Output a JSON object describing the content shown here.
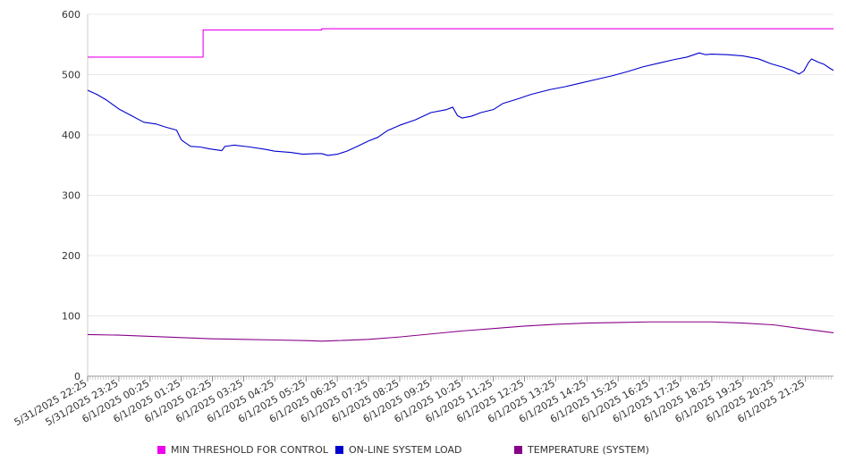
{
  "chart_data": {
    "type": "line",
    "y_ticks": [
      0,
      100,
      200,
      300,
      400,
      500,
      600
    ],
    "ylim": [
      0,
      600
    ],
    "x_tick_labels": [
      "5/31/2025 22:25",
      "5/31/2025 23:25",
      "6/1/2025 00:25",
      "6/1/2025 01:25",
      "6/1/2025 02:25",
      "6/1/2025 03:25",
      "6/1/2025 04:25",
      "6/1/2025 05:25",
      "6/1/2025 06:25",
      "6/1/2025 07:25",
      "6/1/2025 08:25",
      "6/1/2025 09:25",
      "6/1/2025 10:25",
      "6/1/2025 11:25",
      "6/1/2025 12:25",
      "6/1/2025 13:25",
      "6/1/2025 14:25",
      "6/1/2025 15:25",
      "6/1/2025 16:25",
      "6/1/2025 17:25",
      "6/1/2025 18:25",
      "6/1/2025 19:25",
      "6/1/2025 20:25",
      "6/1/2025 21:25"
    ],
    "x_hours": [
      0,
      1,
      2,
      3,
      4,
      5,
      6,
      7,
      8,
      9,
      10,
      11,
      12,
      13,
      14,
      15,
      16,
      17,
      18,
      19,
      20,
      21,
      22,
      23
    ],
    "xlim_hours": [
      0,
      23.9
    ],
    "grid": true,
    "legend_placement": "bottom",
    "series": [
      {
        "name": "MIN THRESHOLD FOR CONTROL",
        "color": "#ee00ee",
        "step": true,
        "points": [
          [
            0,
            529
          ],
          [
            3.7,
            529
          ],
          [
            3.7,
            574
          ],
          [
            7.5,
            574
          ],
          [
            7.5,
            576
          ],
          [
            23.9,
            576
          ]
        ]
      },
      {
        "name": "ON-LINE SYSTEM LOAD",
        "color": "#0000cc",
        "points": [
          [
            0,
            474
          ],
          [
            0.3,
            467
          ],
          [
            0.6,
            458
          ],
          [
            1.0,
            443
          ],
          [
            1.4,
            432
          ],
          [
            1.8,
            421
          ],
          [
            2.2,
            418
          ],
          [
            2.5,
            413
          ],
          [
            2.85,
            408
          ],
          [
            3.0,
            392
          ],
          [
            3.1,
            388
          ],
          [
            3.3,
            381
          ],
          [
            3.6,
            380
          ],
          [
            3.9,
            377
          ],
          [
            4.3,
            374
          ],
          [
            4.4,
            381
          ],
          [
            4.7,
            383
          ],
          [
            5.2,
            380
          ],
          [
            5.7,
            376
          ],
          [
            6.0,
            373
          ],
          [
            6.5,
            371
          ],
          [
            6.9,
            368
          ],
          [
            7.3,
            369
          ],
          [
            7.5,
            369
          ],
          [
            7.7,
            366
          ],
          [
            8.0,
            368
          ],
          [
            8.3,
            373
          ],
          [
            8.6,
            380
          ],
          [
            9.0,
            390
          ],
          [
            9.3,
            396
          ],
          [
            9.6,
            407
          ],
          [
            10.0,
            416
          ],
          [
            10.5,
            425
          ],
          [
            11.0,
            437
          ],
          [
            11.5,
            442
          ],
          [
            11.7,
            446
          ],
          [
            11.85,
            432
          ],
          [
            12.0,
            428
          ],
          [
            12.3,
            431
          ],
          [
            12.6,
            437
          ],
          [
            13.0,
            442
          ],
          [
            13.3,
            452
          ],
          [
            13.8,
            460
          ],
          [
            14.2,
            467
          ],
          [
            14.8,
            475
          ],
          [
            15.3,
            480
          ],
          [
            15.8,
            486
          ],
          [
            16.3,
            492
          ],
          [
            16.8,
            498
          ],
          [
            17.3,
            505
          ],
          [
            17.8,
            513
          ],
          [
            18.3,
            519
          ],
          [
            18.8,
            525
          ],
          [
            19.2,
            529
          ],
          [
            19.6,
            536
          ],
          [
            19.8,
            533
          ],
          [
            20.0,
            534
          ],
          [
            20.5,
            533
          ],
          [
            21.0,
            531
          ],
          [
            21.5,
            526
          ],
          [
            21.9,
            518
          ],
          [
            22.3,
            512
          ],
          [
            22.6,
            506
          ],
          [
            22.8,
            501
          ],
          [
            22.95,
            506
          ],
          [
            23.1,
            520
          ],
          [
            23.2,
            526
          ],
          [
            23.4,
            521
          ],
          [
            23.6,
            517
          ],
          [
            23.8,
            510
          ],
          [
            23.9,
            507
          ]
        ]
      },
      {
        "name": "TEMPERATURE (SYSTEM)",
        "color": "#880088",
        "points": [
          [
            0,
            69
          ],
          [
            1,
            68
          ],
          [
            2,
            66
          ],
          [
            3,
            64
          ],
          [
            4,
            62
          ],
          [
            5,
            61
          ],
          [
            6,
            60
          ],
          [
            7,
            59
          ],
          [
            7.5,
            58
          ],
          [
            8,
            59
          ],
          [
            9,
            61
          ],
          [
            10,
            65
          ],
          [
            11,
            70
          ],
          [
            12,
            75
          ],
          [
            13,
            79
          ],
          [
            14,
            83
          ],
          [
            15,
            86
          ],
          [
            16,
            88
          ],
          [
            17,
            89
          ],
          [
            18,
            90
          ],
          [
            19,
            90
          ],
          [
            20,
            90
          ],
          [
            21,
            88
          ],
          [
            22,
            85
          ],
          [
            23,
            78
          ],
          [
            23.9,
            72
          ]
        ]
      }
    ]
  }
}
